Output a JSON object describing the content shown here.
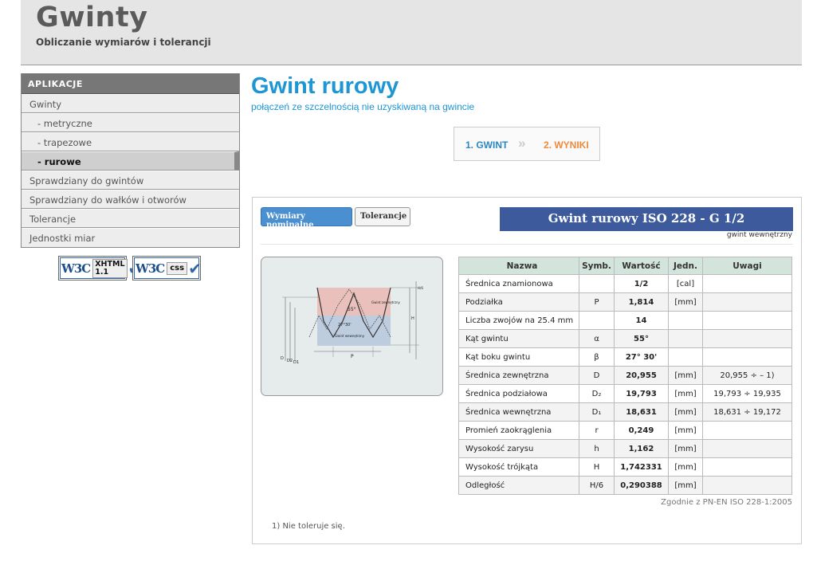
{
  "header": {
    "title": "Gwinty",
    "subtitle": "Obliczanie wymiarów i tolerancji"
  },
  "sidebar": {
    "heading": "APLIKACJE",
    "items": [
      {
        "label": "Gwinty",
        "level": 0,
        "active": false
      },
      {
        "label": "- metryczne",
        "level": 1,
        "active": false
      },
      {
        "label": "- trapezowe",
        "level": 1,
        "active": false
      },
      {
        "label": "- rurowe",
        "level": 1,
        "active": true
      },
      {
        "label": "Sprawdziany do gwintów",
        "level": 0,
        "active": false
      },
      {
        "label": "Sprawdziany do wałków i otworów",
        "level": 0,
        "active": false
      },
      {
        "label": "Tolerancje",
        "level": 0,
        "active": false
      },
      {
        "label": "Jednostki miar",
        "level": 0,
        "active": false
      }
    ],
    "badges": [
      {
        "logo": "W3C",
        "text": "XHTML",
        "version": "1.1"
      },
      {
        "logo": "W3C",
        "text": "css",
        "version": ""
      }
    ]
  },
  "main": {
    "title": "Gwint rurowy",
    "subtitle": "połączeń ze szczelnością nie uzyskiwaną na gwincie",
    "steps": {
      "step1": "1. GWINT",
      "separator": "»",
      "step2": "2. WYNIKI"
    },
    "tabs": {
      "nominal": "Wymiary nominalne",
      "tolerances": "Tolerancje"
    },
    "thread_name": "Gwint rurowy ISO 228 - G 1/2",
    "thread_type": "gwint wewnętrzny",
    "diagram": {
      "angle": "55°",
      "half_angle": "27°30'",
      "label_outer": "Gwint zewnętrzny",
      "label_inner": "Gwint wewnętrzny",
      "sym_p": "P",
      "sym_h": "H",
      "sym_h6": "H/6",
      "sym_d": "D",
      "sym_d2": "D2",
      "sym_d1": "D1"
    },
    "table": {
      "headers": [
        "Nazwa",
        "Symb.",
        "Wartość",
        "Jedn.",
        "Uwagi"
      ],
      "rows": [
        {
          "name": "Średnica znamionowa",
          "sym": "",
          "value": "1/2",
          "unit": "[cal]",
          "note": ""
        },
        {
          "name": "Podziałka",
          "sym": "P",
          "value": "1,814",
          "unit": "[mm]",
          "note": ""
        },
        {
          "name": "Liczba zwojów na 25.4 mm",
          "sym": "",
          "value": "14",
          "unit": "",
          "note": ""
        },
        {
          "name": "Kąt gwintu",
          "sym": "α",
          "value": "55°",
          "unit": "",
          "note": ""
        },
        {
          "name": "Kąt boku gwintu",
          "sym": "β",
          "value": "27° 30'",
          "unit": "",
          "note": ""
        },
        {
          "name": "Średnica zewnętrzna",
          "sym": "D",
          "value": "20,955",
          "unit": "[mm]",
          "note": "20,955 ÷ – 1)"
        },
        {
          "name": "Średnica podziałowa",
          "sym": "D₂",
          "value": "19,793",
          "unit": "[mm]",
          "note": "19,793 ÷ 19,935"
        },
        {
          "name": "Średnica wewnętrzna",
          "sym": "D₁",
          "value": "18,631",
          "unit": "[mm]",
          "note": "18,631 ÷ 19,172"
        },
        {
          "name": "Promień zaokrąglenia",
          "sym": "r",
          "value": "0,249",
          "unit": "[mm]",
          "note": ""
        },
        {
          "name": "Wysokość zarysu",
          "sym": "h",
          "value": "1,162",
          "unit": "[mm]",
          "note": ""
        },
        {
          "name": "Wysokość trójkąta",
          "sym": "H",
          "value": "1,742331",
          "unit": "[mm]",
          "note": ""
        },
        {
          "name": "Odległość",
          "sym": "H/6",
          "value": "0,290388",
          "unit": "[mm]",
          "note": ""
        }
      ]
    },
    "standard": "Zgodnie z PN-EN ISO 228-1:2005",
    "footnote": "1) Nie toleruje się."
  }
}
